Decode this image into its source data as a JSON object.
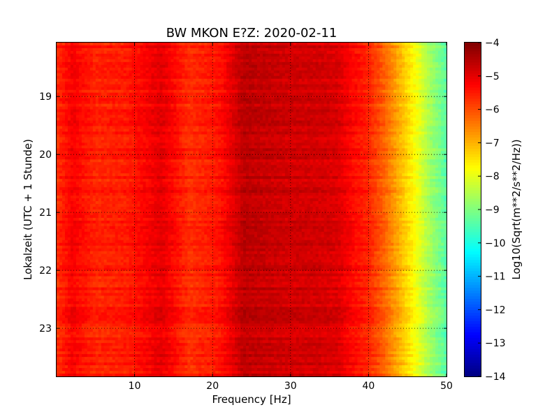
{
  "chart_data": {
    "type": "heatmap",
    "title": "BW MKON E?Z: 2020-02-11",
    "xlabel": "Frequency [Hz]",
    "ylabel": "Lokalzeit (UTC + 1 Stunde)",
    "xlim": [
      0,
      50
    ],
    "ylim": [
      18.07,
      23.83
    ],
    "y_inverted": true,
    "xticks": [
      10,
      20,
      30,
      40,
      50
    ],
    "xtick_labels": [
      "10",
      "20",
      "30",
      "40",
      "50"
    ],
    "yticks": [
      19,
      20,
      21,
      22,
      23
    ],
    "ytick_labels": [
      "19",
      "20",
      "21",
      "22",
      "23"
    ],
    "grid": true,
    "colorbar": {
      "label": "Log10(Sqrt(m**2/s**2/Hz))",
      "min": -14,
      "max": -4,
      "ticks": [
        -4,
        -5,
        -6,
        -7,
        -8,
        -9,
        -10,
        -11,
        -12,
        -13,
        -14
      ],
      "tick_labels": [
        "−4",
        "−5",
        "−6",
        "−7",
        "−8",
        "−9",
        "−10",
        "−11",
        "−12",
        "−13",
        "−14"
      ],
      "colormap": "jet"
    },
    "spectrum_profile": {
      "frequency_hz": [
        0,
        2,
        5,
        9,
        13.5,
        17,
        21,
        24,
        27,
        30,
        33,
        36,
        38,
        40,
        42,
        44,
        46,
        48,
        50
      ],
      "log10_asd": [
        -5.7,
        -5.2,
        -5.6,
        -5.5,
        -5.0,
        -5.7,
        -5.4,
        -4.6,
        -4.7,
        -4.8,
        -4.8,
        -4.9,
        -5.3,
        -5.6,
        -6.2,
        -7.0,
        -7.8,
        -8.7,
        -9.4
      ]
    }
  }
}
